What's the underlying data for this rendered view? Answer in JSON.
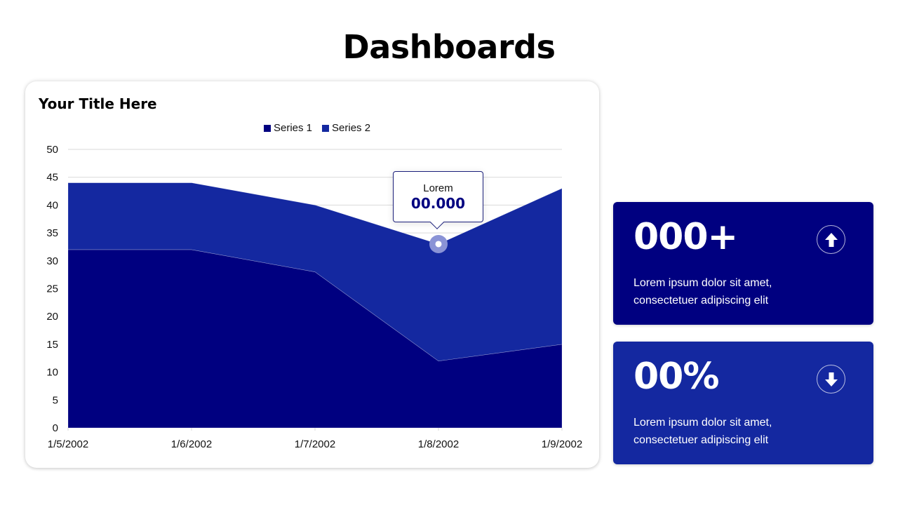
{
  "page": {
    "title": "Dashboards"
  },
  "chart_card": {
    "title": "Your Title Here",
    "legend": [
      {
        "label": "Series 1",
        "color": "#000080"
      },
      {
        "label": "Series 2",
        "color": "#1428A0"
      }
    ],
    "tooltip": {
      "label": "Lorem",
      "value": "00.000"
    }
  },
  "chart_data": {
    "type": "area",
    "stacked": true,
    "title": "Your Title Here",
    "categories": [
      "1/5/2002",
      "1/6/2002",
      "1/7/2002",
      "1/8/2002",
      "1/9/2002"
    ],
    "series": [
      {
        "name": "Series 1",
        "values": [
          32,
          32,
          28,
          12,
          15
        ],
        "color": "#000080"
      },
      {
        "name": "Series 2",
        "values": [
          12,
          12,
          12,
          21,
          28
        ],
        "color": "#1428A0"
      }
    ],
    "y_ticks": [
      0,
      5,
      10,
      15,
      20,
      25,
      30,
      35,
      40,
      45,
      50
    ],
    "ylim": [
      0,
      50
    ],
    "xlabel": "",
    "ylabel": "",
    "grid": true,
    "legend_position": "top",
    "annotations": [
      {
        "category": "1/8/2002",
        "series": "Series 2",
        "label": "Lorem",
        "value": "00.000"
      }
    ]
  },
  "kpis": [
    {
      "value": "000+",
      "description_line1": "Lorem ipsum dolor sit amet,",
      "description_line2": "consectetuer adipiscing elit",
      "icon": "arrow-up-icon",
      "bg": "#000080"
    },
    {
      "value": "00%",
      "description_line1": "Lorem ipsum dolor sit amet,",
      "description_line2": "consectetuer adipiscing elit",
      "icon": "arrow-down-icon",
      "bg": "#1428A0"
    }
  ]
}
